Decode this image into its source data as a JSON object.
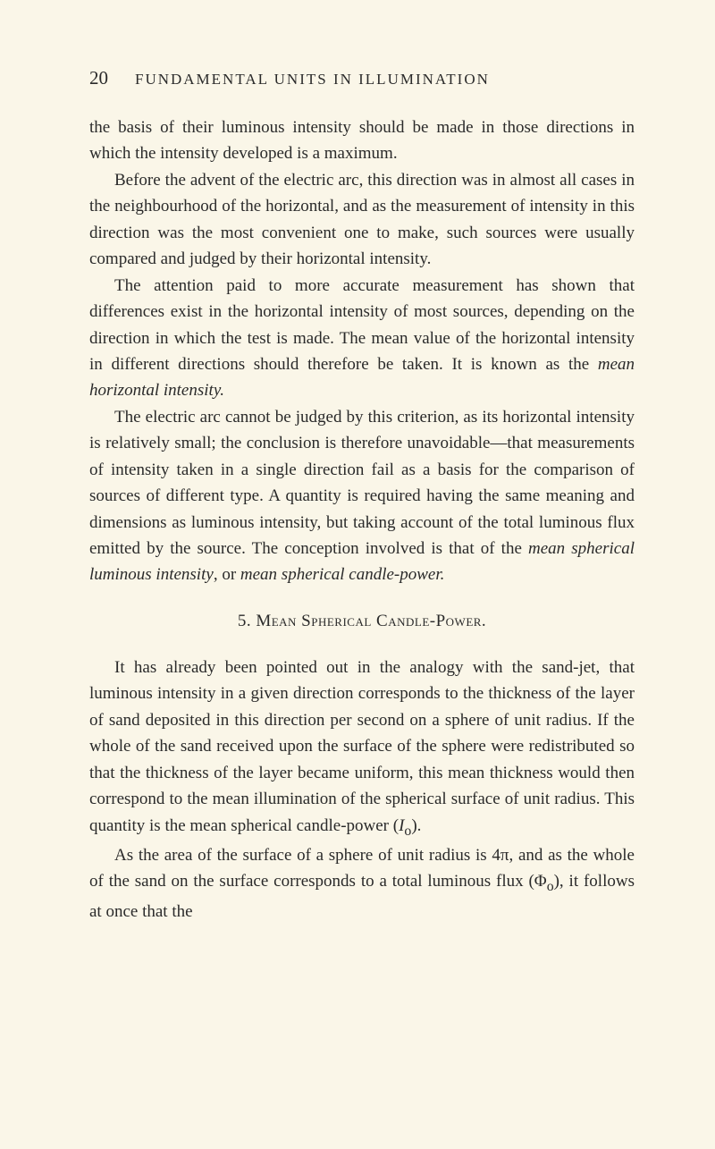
{
  "header": {
    "page_number": "20",
    "running_title": "FUNDAMENTAL UNITS IN ILLUMINATION"
  },
  "paragraphs": {
    "p1": "the basis of their luminous intensity should be made in those directions in which the intensity developed is a maximum.",
    "p2": "Before the advent of the electric arc, this direction was in almost all cases in the neighbourhood of the horizontal, and as the measurement of intensity in this direction was the most convenient one to make, such sources were usually compared and judged by their horizontal intensity.",
    "p3_a": "The attention paid to more accurate measurement has shown that differences exist in the horizontal intensity of most sources, depending on the direction in which the test is made. The mean value of the horizontal intensity in different directions should therefore be taken. It is known as the ",
    "p3_i": "mean horizontal intensity.",
    "p4_a": "The electric arc cannot be judged by this criterion, as its horizontal intensity is relatively small; the conclusion is therefore unavoidable—that measurements of intensity taken in a single direction fail as a basis for the comparison of sources of different type. A quantity is required having the same meaning and dimensions as luminous intensity, but taking account of the total luminous flux emitted by the source. The conception involved is that of the ",
    "p4_i1": "mean spherical luminous intensity",
    "p4_b": ", or ",
    "p4_i2": "mean spherical candle-power.",
    "section": {
      "num": "5.",
      "title": "Mean Spherical Candle-Power."
    },
    "p5_a": "It has already been pointed out in the analogy with the sand-jet, that luminous intensity in a given direction corresponds to the thickness of the layer of sand deposited in this direction per second on a sphere of unit radius. If the whole of the sand received upon the surface of the sphere were redistributed so that the thickness of the layer became uniform, this mean thickness would then correspond to the mean illumination of the spherical surface of unit radius. This quantity is the mean spherical candle-power (",
    "p5_i1": "I",
    "p5_sub1": "o",
    "p5_b": ").",
    "p6_a": "As the area of the surface of a sphere of unit radius is 4π, and as the whole of the sand on the surface corresponds to a total luminous flux (Φ",
    "p6_sub": "o",
    "p6_b": "), it follows at once that the"
  },
  "styling": {
    "background_color": "#faf6e8",
    "text_color": "#2a2a2a",
    "body_fontsize": 19,
    "line_height": 1.55,
    "page_num_fontsize": 21,
    "header_fontsize": 17
  }
}
